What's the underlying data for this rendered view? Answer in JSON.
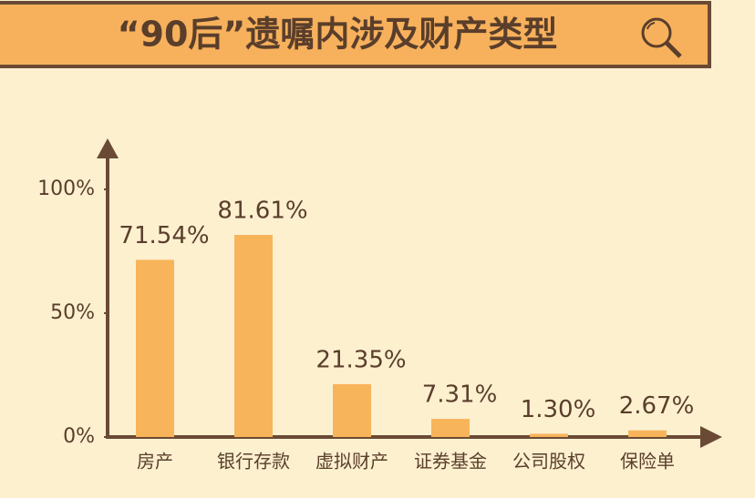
{
  "chart_data": {
    "type": "bar",
    "title": "“90后”遗嘱内涉及财产类型",
    "categories": [
      "房产",
      "银行存款",
      "虚拟财产",
      "证券基金",
      "公司股权",
      "保险单"
    ],
    "values": [
      71.54,
      81.61,
      21.35,
      7.31,
      1.3,
      2.67
    ],
    "value_labels": [
      "71.54%",
      "81.61%",
      "21.35%",
      "7.31%",
      "1.30%",
      "2.67%"
    ],
    "color": "#f8b45a",
    "ylim": [
      0,
      120
    ],
    "yticks": [
      {
        "value": 0,
        "label": "0%"
      },
      {
        "value": 50,
        "label": "50%"
      },
      {
        "value": 100,
        "label": "100%"
      }
    ],
    "grid": false
  }
}
